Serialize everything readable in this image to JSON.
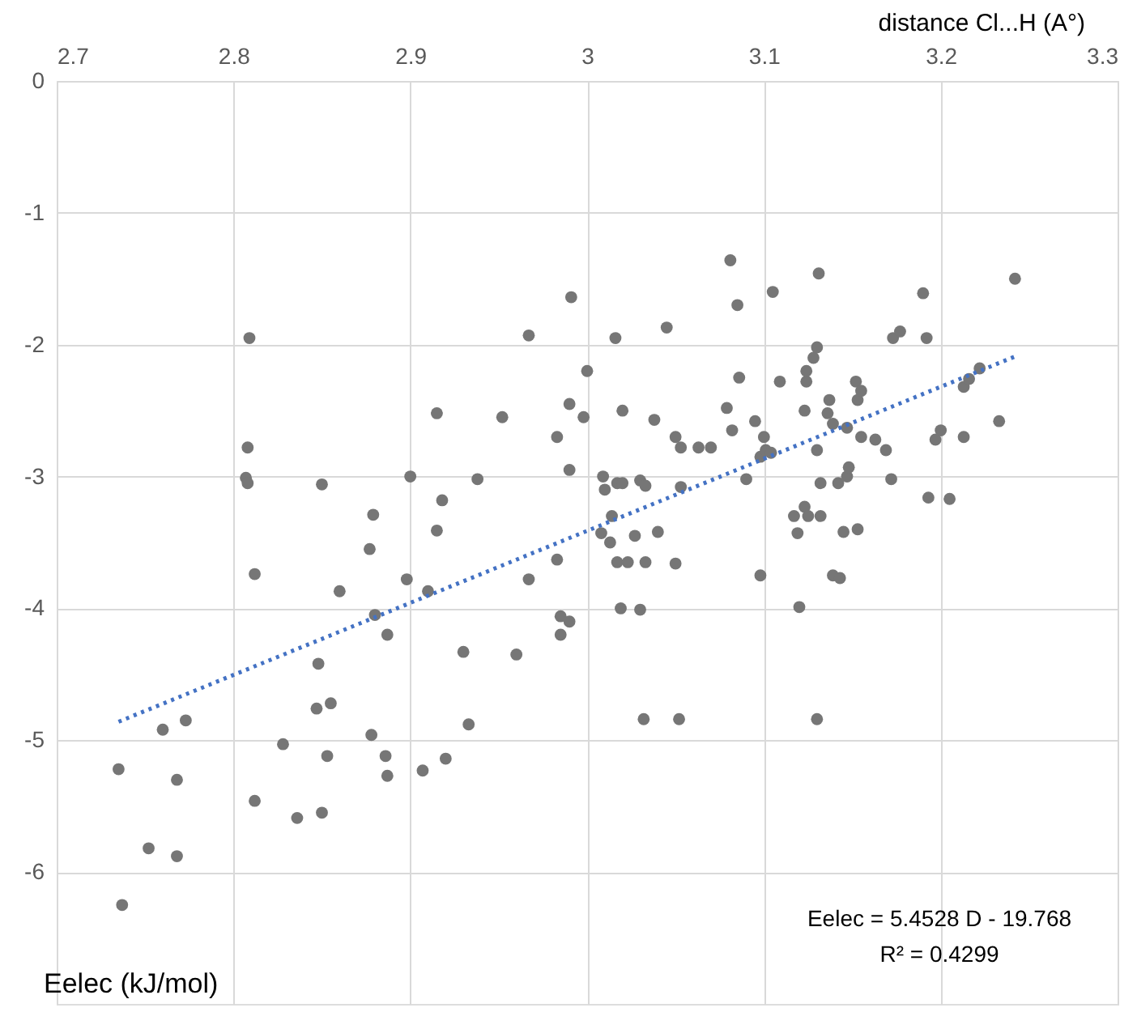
{
  "chart_data": {
    "type": "scatter",
    "xlabel": "distance  Cl...H    (A°)",
    "ylabel": "Eelec  (kJ/mol)",
    "annotations": [
      "Eelec = 5.4528 D - 19.768",
      "R² = 0.4299"
    ],
    "xlim": [
      2.7,
      3.3
    ],
    "xticks": [
      2.7,
      2.8,
      2.9,
      3,
      3.1,
      3.2,
      3.3
    ],
    "ylim": [
      -7,
      0
    ],
    "yticks": [
      0,
      -1,
      -2,
      -3,
      -4,
      -5,
      -6
    ],
    "grid": true,
    "series": [
      {
        "color": "#767676",
        "marker": "circle",
        "x": [
          2.809,
          2.808,
          2.807,
          2.808,
          2.812,
          2.85,
          2.879,
          2.86,
          2.877,
          2.9,
          2.898,
          2.88,
          2.887,
          2.91,
          2.915,
          2.915,
          2.918,
          2.938,
          2.93,
          2.933,
          2.92,
          2.907,
          2.886,
          2.887,
          2.878,
          2.855,
          2.847,
          2.848,
          2.853,
          2.85,
          2.836,
          2.828,
          2.812,
          2.773,
          2.76,
          2.768,
          2.735,
          2.752,
          2.768,
          2.737,
          2.952,
          2.967,
          2.983,
          2.99,
          2.991,
          2.99,
          3.0,
          2.998,
          2.983,
          2.967,
          2.96,
          2.985,
          2.985,
          2.99,
          3.008,
          3.009,
          3.01,
          3.013,
          3.014,
          3.017,
          3.02,
          3.016,
          3.02,
          3.017,
          3.023,
          3.019,
          3.03,
          3.033,
          3.027,
          3.033,
          3.03,
          3.038,
          3.045,
          3.04,
          3.032,
          3.052,
          3.05,
          3.05,
          3.053,
          3.063,
          3.07,
          3.053,
          3.081,
          3.085,
          3.079,
          3.082,
          3.086,
          3.09,
          3.095,
          3.1,
          3.098,
          3.101,
          3.104,
          3.098,
          3.105,
          3.109,
          3.117,
          3.119,
          3.12,
          3.123,
          3.125,
          3.123,
          3.124,
          3.124,
          3.128,
          3.13,
          3.131,
          3.13,
          3.132,
          3.132,
          3.13,
          3.136,
          3.137,
          3.139,
          3.139,
          3.143,
          3.142,
          3.145,
          3.147,
          3.148,
          3.147,
          3.152,
          3.153,
          3.155,
          3.153,
          3.155,
          3.163,
          3.169,
          3.173,
          3.177,
          3.172,
          3.19,
          3.192,
          3.193,
          3.197,
          3.2,
          3.205,
          3.213,
          3.213,
          3.216,
          3.222,
          3.233,
          3.242
        ],
        "values": [
          -1.95,
          -2.78,
          -3.01,
          -3.05,
          -3.74,
          -3.06,
          -3.29,
          -3.87,
          -3.55,
          -3.0,
          -3.78,
          -4.05,
          -4.2,
          -3.87,
          -3.41,
          -2.52,
          -3.18,
          -3.02,
          -4.33,
          -4.88,
          -5.14,
          -5.23,
          -5.12,
          -5.27,
          -4.96,
          -4.72,
          -4.76,
          -4.42,
          -5.12,
          -5.55,
          -5.59,
          -5.03,
          -5.46,
          -4.85,
          -4.92,
          -5.3,
          -5.22,
          -5.82,
          -5.88,
          -6.25,
          -2.55,
          -1.93,
          -2.7,
          -2.45,
          -1.64,
          -2.95,
          -2.2,
          -2.55,
          -3.63,
          -3.78,
          -4.35,
          -4.06,
          -4.2,
          -4.1,
          -3.43,
          -3.0,
          -3.1,
          -3.5,
          -3.3,
          -3.05,
          -3.05,
          -1.95,
          -2.5,
          -3.65,
          -3.65,
          -4.0,
          -3.03,
          -3.07,
          -3.45,
          -3.65,
          -4.01,
          -2.57,
          -1.87,
          -3.42,
          -4.84,
          -4.84,
          -3.66,
          -2.7,
          -2.78,
          -2.78,
          -2.78,
          -3.08,
          -1.36,
          -1.7,
          -2.48,
          -2.65,
          -2.25,
          -3.02,
          -2.58,
          -2.7,
          -2.85,
          -2.8,
          -2.82,
          -3.75,
          -1.6,
          -2.28,
          -3.3,
          -3.43,
          -3.99,
          -3.23,
          -3.3,
          -2.5,
          -2.2,
          -2.28,
          -2.1,
          -2.02,
          -1.46,
          -2.8,
          -3.05,
          -3.3,
          -4.84,
          -2.52,
          -2.42,
          -2.6,
          -3.75,
          -3.77,
          -3.05,
          -3.42,
          -3.0,
          -2.93,
          -2.63,
          -2.28,
          -2.42,
          -2.35,
          -3.4,
          -2.7,
          -2.72,
          -2.8,
          -1.95,
          -1.9,
          -3.02,
          -1.61,
          -1.95,
          -3.16,
          -2.72,
          -2.65,
          -3.17,
          -2.7,
          -2.32,
          -2.26,
          -2.18,
          -2.58,
          -1.5
        ]
      },
      {
        "type": "line",
        "color": "#4472c4",
        "line_style": "dotted",
        "marker": "none",
        "x": [
          2.735,
          3.242
        ],
        "values": [
          -4.86,
          -2.09
        ]
      }
    ]
  }
}
